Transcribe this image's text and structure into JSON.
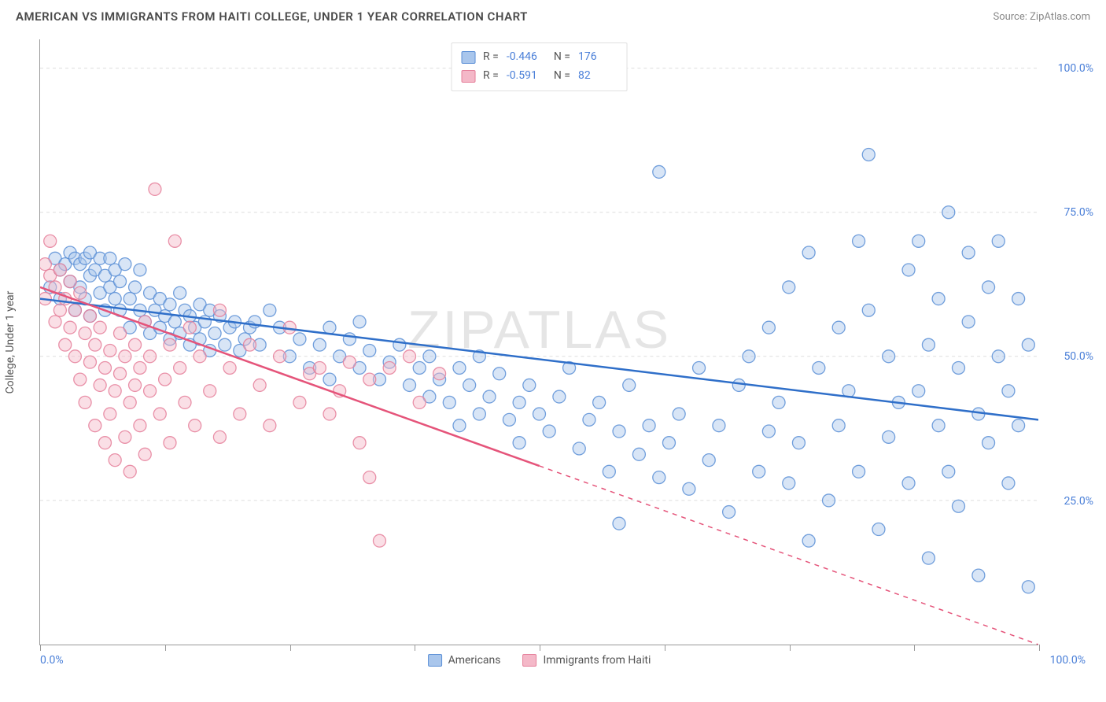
{
  "header": {
    "title": "AMERICAN VS IMMIGRANTS FROM HAITI COLLEGE, UNDER 1 YEAR CORRELATION CHART",
    "source_label": "Source: ",
    "source_name": "ZipAtlas.com"
  },
  "watermark": "ZIPATLAS",
  "chart": {
    "type": "scatter",
    "ylabel": "College, Under 1 year",
    "xlim": [
      0,
      100
    ],
    "ylim": [
      0,
      105
    ],
    "xtick_positions": [
      0,
      12.5,
      25,
      37.5,
      50,
      62.5,
      75,
      87.5,
      100
    ],
    "yticks": [
      25,
      50,
      75,
      100
    ],
    "ytick_labels": [
      "25.0%",
      "50.0%",
      "75.0%",
      "100.0%"
    ],
    "xaxis_start_label": "0.0%",
    "xaxis_end_label": "100.0%",
    "grid_color": "#dddddd",
    "axis_color": "#999999",
    "background_color": "#ffffff",
    "marker_radius": 8,
    "line_width": 2.5,
    "series": [
      {
        "name": "Americans",
        "color_fill": "#a9c6ec",
        "color_stroke": "#5b8fd6",
        "line_color": "#2f6fc9",
        "R": "-0.446",
        "N": "176",
        "trend": {
          "x1": 0,
          "y1": 60,
          "x2": 100,
          "y2": 39,
          "solid_until_x": 100
        },
        "points": [
          [
            1,
            62
          ],
          [
            1.5,
            67
          ],
          [
            2,
            65
          ],
          [
            2,
            60
          ],
          [
            2.5,
            66
          ],
          [
            3,
            68
          ],
          [
            3,
            63
          ],
          [
            3.5,
            67
          ],
          [
            3.5,
            58
          ],
          [
            4,
            66
          ],
          [
            4,
            62
          ],
          [
            4.5,
            67
          ],
          [
            4.5,
            60
          ],
          [
            5,
            68
          ],
          [
            5,
            64
          ],
          [
            5,
            57
          ],
          [
            5.5,
            65
          ],
          [
            6,
            67
          ],
          [
            6,
            61
          ],
          [
            6.5,
            64
          ],
          [
            6.5,
            58
          ],
          [
            7,
            62
          ],
          [
            7,
            67
          ],
          [
            7.5,
            60
          ],
          [
            7.5,
            65
          ],
          [
            8,
            58
          ],
          [
            8,
            63
          ],
          [
            8.5,
            66
          ],
          [
            9,
            60
          ],
          [
            9,
            55
          ],
          [
            9.5,
            62
          ],
          [
            10,
            58
          ],
          [
            10,
            65
          ],
          [
            10.5,
            56
          ],
          [
            11,
            61
          ],
          [
            11,
            54
          ],
          [
            11.5,
            58
          ],
          [
            12,
            60
          ],
          [
            12,
            55
          ],
          [
            12.5,
            57
          ],
          [
            13,
            59
          ],
          [
            13,
            53
          ],
          [
            13.5,
            56
          ],
          [
            14,
            61
          ],
          [
            14,
            54
          ],
          [
            14.5,
            58
          ],
          [
            15,
            57
          ],
          [
            15,
            52
          ],
          [
            15.5,
            55
          ],
          [
            16,
            59
          ],
          [
            16,
            53
          ],
          [
            16.5,
            56
          ],
          [
            17,
            58
          ],
          [
            17,
            51
          ],
          [
            17.5,
            54
          ],
          [
            18,
            57
          ],
          [
            18.5,
            52
          ],
          [
            19,
            55
          ],
          [
            19.5,
            56
          ],
          [
            20,
            51
          ],
          [
            20.5,
            53
          ],
          [
            21,
            55
          ],
          [
            21.5,
            56
          ],
          [
            22,
            52
          ],
          [
            23,
            58
          ],
          [
            24,
            55
          ],
          [
            25,
            50
          ],
          [
            26,
            53
          ],
          [
            27,
            48
          ],
          [
            28,
            52
          ],
          [
            29,
            55
          ],
          [
            29,
            46
          ],
          [
            30,
            50
          ],
          [
            31,
            53
          ],
          [
            32,
            48
          ],
          [
            32,
            56
          ],
          [
            33,
            51
          ],
          [
            34,
            46
          ],
          [
            35,
            49
          ],
          [
            36,
            52
          ],
          [
            37,
            45
          ],
          [
            38,
            48
          ],
          [
            39,
            43
          ],
          [
            39,
            50
          ],
          [
            40,
            46
          ],
          [
            41,
            42
          ],
          [
            42,
            48
          ],
          [
            42,
            38
          ],
          [
            43,
            45
          ],
          [
            44,
            40
          ],
          [
            44,
            50
          ],
          [
            45,
            43
          ],
          [
            46,
            47
          ],
          [
            47,
            39
          ],
          [
            48,
            42
          ],
          [
            48,
            35
          ],
          [
            49,
            45
          ],
          [
            50,
            40
          ],
          [
            51,
            37
          ],
          [
            52,
            43
          ],
          [
            53,
            48
          ],
          [
            54,
            34
          ],
          [
            55,
            39
          ],
          [
            56,
            42
          ],
          [
            57,
            30
          ],
          [
            58,
            37
          ],
          [
            58,
            21
          ],
          [
            59,
            45
          ],
          [
            60,
            33
          ],
          [
            61,
            38
          ],
          [
            62,
            29
          ],
          [
            62,
            82
          ],
          [
            63,
            35
          ],
          [
            64,
            40
          ],
          [
            65,
            27
          ],
          [
            66,
            48
          ],
          [
            67,
            32
          ],
          [
            68,
            38
          ],
          [
            69,
            23
          ],
          [
            70,
            45
          ],
          [
            71,
            50
          ],
          [
            72,
            30
          ],
          [
            73,
            55
          ],
          [
            73,
            37
          ],
          [
            74,
            42
          ],
          [
            75,
            62
          ],
          [
            75,
            28
          ],
          [
            76,
            35
          ],
          [
            77,
            68
          ],
          [
            77,
            18
          ],
          [
            78,
            48
          ],
          [
            79,
            25
          ],
          [
            80,
            55
          ],
          [
            80,
            38
          ],
          [
            81,
            44
          ],
          [
            82,
            70
          ],
          [
            82,
            30
          ],
          [
            83,
            58
          ],
          [
            83,
            85
          ],
          [
            84,
            20
          ],
          [
            85,
            50
          ],
          [
            85,
            36
          ],
          [
            86,
            42
          ],
          [
            87,
            65
          ],
          [
            87,
            28
          ],
          [
            88,
            70
          ],
          [
            88,
            44
          ],
          [
            89,
            52
          ],
          [
            89,
            15
          ],
          [
            90,
            38
          ],
          [
            90,
            60
          ],
          [
            91,
            75
          ],
          [
            91,
            30
          ],
          [
            92,
            48
          ],
          [
            92,
            24
          ],
          [
            93,
            56
          ],
          [
            93,
            68
          ],
          [
            94,
            40
          ],
          [
            94,
            12
          ],
          [
            95,
            62
          ],
          [
            95,
            35
          ],
          [
            96,
            50
          ],
          [
            96,
            70
          ],
          [
            97,
            28
          ],
          [
            97,
            44
          ],
          [
            98,
            60
          ],
          [
            98,
            38
          ],
          [
            99,
            10
          ],
          [
            99,
            52
          ]
        ]
      },
      {
        "name": "Immigrants from Haiti",
        "color_fill": "#f4b8c8",
        "color_stroke": "#e57f9a",
        "line_color": "#e5547a",
        "R": "-0.591",
        "N": "82",
        "trend": {
          "x1": 0,
          "y1": 62,
          "x2": 100,
          "y2": 0,
          "solid_until_x": 50
        },
        "points": [
          [
            0.5,
            66
          ],
          [
            0.5,
            60
          ],
          [
            1,
            64
          ],
          [
            1,
            70
          ],
          [
            1.5,
            62
          ],
          [
            1.5,
            56
          ],
          [
            2,
            65
          ],
          [
            2,
            58
          ],
          [
            2.5,
            60
          ],
          [
            2.5,
            52
          ],
          [
            3,
            63
          ],
          [
            3,
            55
          ],
          [
            3.5,
            50
          ],
          [
            3.5,
            58
          ],
          [
            4,
            61
          ],
          [
            4,
            46
          ],
          [
            4.5,
            54
          ],
          [
            4.5,
            42
          ],
          [
            5,
            57
          ],
          [
            5,
            49
          ],
          [
            5.5,
            38
          ],
          [
            5.5,
            52
          ],
          [
            6,
            55
          ],
          [
            6,
            45
          ],
          [
            6.5,
            35
          ],
          [
            6.5,
            48
          ],
          [
            7,
            51
          ],
          [
            7,
            40
          ],
          [
            7.5,
            32
          ],
          [
            7.5,
            44
          ],
          [
            8,
            47
          ],
          [
            8,
            54
          ],
          [
            8.5,
            36
          ],
          [
            8.5,
            50
          ],
          [
            9,
            42
          ],
          [
            9,
            30
          ],
          [
            9.5,
            45
          ],
          [
            9.5,
            52
          ],
          [
            10,
            38
          ],
          [
            10,
            48
          ],
          [
            10.5,
            56
          ],
          [
            10.5,
            33
          ],
          [
            11,
            44
          ],
          [
            11,
            50
          ],
          [
            11.5,
            79
          ],
          [
            12,
            40
          ],
          [
            12.5,
            46
          ],
          [
            13,
            35
          ],
          [
            13,
            52
          ],
          [
            13.5,
            70
          ],
          [
            14,
            48
          ],
          [
            14.5,
            42
          ],
          [
            15,
            55
          ],
          [
            15.5,
            38
          ],
          [
            16,
            50
          ],
          [
            17,
            44
          ],
          [
            18,
            58
          ],
          [
            18,
            36
          ],
          [
            19,
            48
          ],
          [
            20,
            40
          ],
          [
            21,
            52
          ],
          [
            22,
            45
          ],
          [
            23,
            38
          ],
          [
            24,
            50
          ],
          [
            25,
            55
          ],
          [
            26,
            42
          ],
          [
            27,
            47
          ],
          [
            28,
            48
          ],
          [
            29,
            40
          ],
          [
            30,
            44
          ],
          [
            31,
            49
          ],
          [
            32,
            35
          ],
          [
            33,
            46
          ],
          [
            33,
            29
          ],
          [
            34,
            18
          ],
          [
            35,
            48
          ],
          [
            37,
            50
          ],
          [
            38,
            42
          ],
          [
            40,
            47
          ]
        ]
      }
    ],
    "legend_bottom": [
      {
        "label": "Americans",
        "fill": "#a9c6ec",
        "stroke": "#5b8fd6"
      },
      {
        "label": "Immigrants from Haiti",
        "fill": "#f4b8c8",
        "stroke": "#e57f9a"
      }
    ]
  }
}
